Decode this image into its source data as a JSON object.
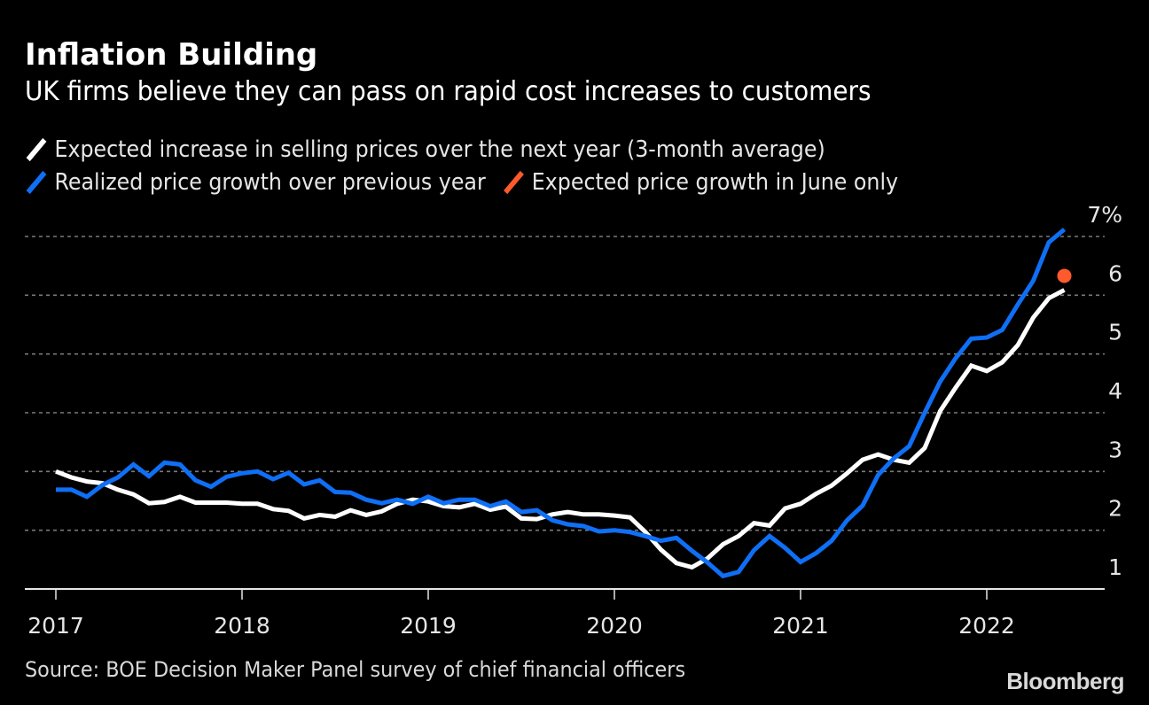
{
  "header": {
    "title": "Inflation Building",
    "subtitle": "UK firms believe they can pass on rapid cost increases to customers"
  },
  "legend": [
    {
      "label": "Expected increase in selling prices over the next year (3-month average)",
      "color": "#ffffff"
    },
    {
      "label": "Realized price growth over previous year",
      "color": "#0f6ff5"
    },
    {
      "label": "Expected price growth in June only",
      "color": "#ff5a2d"
    }
  ],
  "footer": {
    "source": "Source: BOE Decision Maker Panel survey of chief financial officers",
    "brand": "Bloomberg"
  },
  "chart_data": {
    "type": "line",
    "title": "Inflation Building",
    "subtitle": "UK firms believe they can pass on rapid cost increases to customers",
    "xlabel": "",
    "ylabel": "",
    "x_start": "2017-01",
    "x_frequency": "monthly",
    "x_range": [
      "2016-11",
      "2022-09"
    ],
    "x_ticks": [
      "2017",
      "2018",
      "2019",
      "2020",
      "2021",
      "2022"
    ],
    "y_range": [
      1,
      7.25
    ],
    "y_ticks": [
      1,
      2,
      3,
      4,
      5,
      6,
      7
    ],
    "y_tick_labels": [
      "1",
      "2",
      "3",
      "4",
      "5",
      "6",
      "7%"
    ],
    "y_axis_position": "right",
    "grid": "horizontal-dotted",
    "legend_position": "top-left",
    "series": [
      {
        "name": "Expected increase in selling prices over the next year (3-month average)",
        "color": "#ffffff",
        "values": [
          3.0,
          2.9,
          2.83,
          2.8,
          2.69,
          2.61,
          2.46,
          2.48,
          2.57,
          2.47,
          2.47,
          2.47,
          2.45,
          2.45,
          2.36,
          2.33,
          2.2,
          2.26,
          2.23,
          2.34,
          2.26,
          2.32,
          2.45,
          2.52,
          2.49,
          2.41,
          2.39,
          2.45,
          2.35,
          2.4,
          2.2,
          2.19,
          2.27,
          2.31,
          2.27,
          2.27,
          2.25,
          2.22,
          1.97,
          1.67,
          1.44,
          1.37,
          1.52,
          1.76,
          1.9,
          2.12,
          2.08,
          2.37,
          2.45,
          2.62,
          2.76,
          2.97,
          3.2,
          3.29,
          3.2,
          3.15,
          3.4,
          4.03,
          4.43,
          4.8,
          4.71,
          4.86,
          5.15,
          5.62,
          5.95,
          6.09
        ]
      },
      {
        "name": "Realized price growth over previous year",
        "color": "#0f6ff5",
        "values": [
          2.69,
          2.69,
          2.57,
          2.77,
          2.9,
          3.12,
          2.92,
          3.15,
          3.12,
          2.85,
          2.74,
          2.91,
          2.97,
          3.0,
          2.87,
          2.98,
          2.78,
          2.85,
          2.65,
          2.64,
          2.52,
          2.46,
          2.52,
          2.45,
          2.57,
          2.46,
          2.52,
          2.52,
          2.41,
          2.49,
          2.31,
          2.34,
          2.17,
          2.1,
          2.07,
          1.98,
          2.0,
          1.97,
          1.9,
          1.82,
          1.87,
          1.65,
          1.45,
          1.22,
          1.29,
          1.66,
          1.9,
          1.7,
          1.46,
          1.61,
          1.82,
          2.17,
          2.42,
          2.94,
          3.22,
          3.43,
          4.0,
          4.53,
          4.93,
          5.26,
          5.28,
          5.41,
          5.84,
          6.25,
          6.9,
          7.12
        ]
      }
    ],
    "points": [
      {
        "name": "Expected price growth in June only",
        "color": "#ff5a2d",
        "x": "2022-06",
        "value": 6.33
      }
    ]
  }
}
